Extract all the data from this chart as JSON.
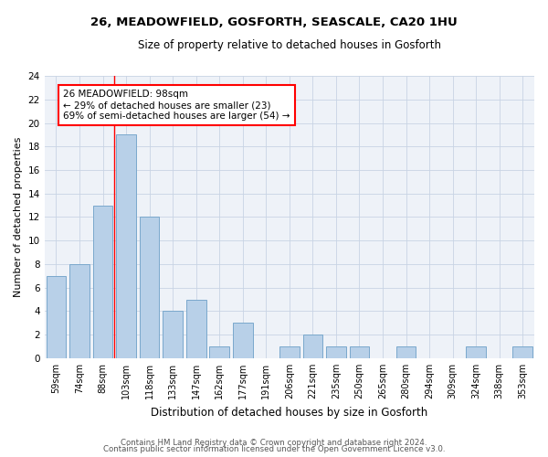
{
  "title1": "26, MEADOWFIELD, GOSFORTH, SEASCALE, CA20 1HU",
  "title2": "Size of property relative to detached houses in Gosforth",
  "xlabel": "Distribution of detached houses by size in Gosforth",
  "ylabel": "Number of detached properties",
  "categories": [
    "59sqm",
    "74sqm",
    "88sqm",
    "103sqm",
    "118sqm",
    "133sqm",
    "147sqm",
    "162sqm",
    "177sqm",
    "191sqm",
    "206sqm",
    "221sqm",
    "235sqm",
    "250sqm",
    "265sqm",
    "280sqm",
    "294sqm",
    "309sqm",
    "324sqm",
    "338sqm",
    "353sqm"
  ],
  "values": [
    7,
    8,
    13,
    19,
    12,
    4,
    5,
    1,
    3,
    0,
    1,
    2,
    1,
    1,
    0,
    1,
    0,
    0,
    1,
    0,
    1
  ],
  "bar_color": "#b8d0e8",
  "bar_edge_color": "#7aa8cc",
  "red_line_x": 2.5,
  "annotation_text": "26 MEADOWFIELD: 98sqm\n← 29% of detached houses are smaller (23)\n69% of semi-detached houses are larger (54) →",
  "annotation_box_color": "white",
  "annotation_box_edge": "red",
  "ylim": [
    0,
    24
  ],
  "yticks": [
    0,
    2,
    4,
    6,
    8,
    10,
    12,
    14,
    16,
    18,
    20,
    22,
    24
  ],
  "footer1": "Contains HM Land Registry data © Crown copyright and database right 2024.",
  "footer2": "Contains public sector information licensed under the Open Government Licence v3.0.",
  "bg_color": "#eef2f8",
  "grid_color": "#c8d4e4"
}
